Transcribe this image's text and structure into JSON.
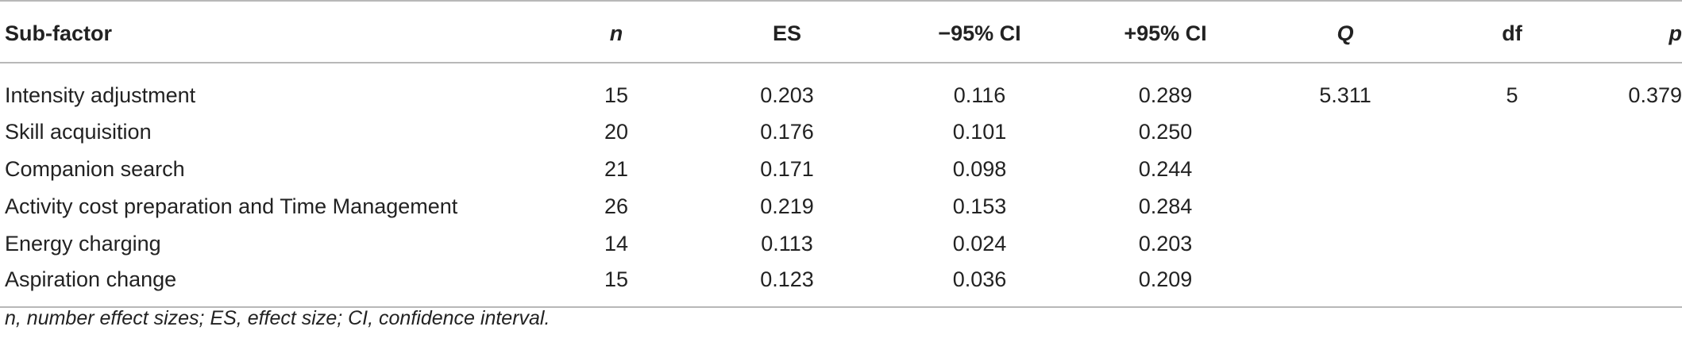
{
  "table": {
    "headers": {
      "sub_factor": "Sub-factor",
      "n": "n",
      "es": "ES",
      "ci_low": "−95% CI",
      "ci_high": "+95% CI",
      "q": "Q",
      "df": "df",
      "p": "p"
    },
    "rows": [
      {
        "sub_factor": "Intensity adjustment",
        "n": "15",
        "es": "0.203",
        "ci_low": "0.116",
        "ci_high": "0.289",
        "q": "5.311",
        "df": "5",
        "p": "0.379"
      },
      {
        "sub_factor": "Skill acquisition",
        "n": "20",
        "es": "0.176",
        "ci_low": "0.101",
        "ci_high": "0.250",
        "q": "",
        "df": "",
        "p": ""
      },
      {
        "sub_factor": "Companion search",
        "n": "21",
        "es": "0.171",
        "ci_low": "0.098",
        "ci_high": "0.244",
        "q": "",
        "df": "",
        "p": ""
      },
      {
        "sub_factor": "Activity cost preparation and Time Management",
        "n": "26",
        "es": "0.219",
        "ci_low": "0.153",
        "ci_high": "0.284",
        "q": "",
        "df": "",
        "p": ""
      },
      {
        "sub_factor": "Energy charging",
        "n": "14",
        "es": "0.113",
        "ci_low": "0.024",
        "ci_high": "0.203",
        "q": "",
        "df": "",
        "p": ""
      },
      {
        "sub_factor": "Aspiration change",
        "n": "15",
        "es": "0.123",
        "ci_low": "0.036",
        "ci_high": "0.209",
        "q": "",
        "df": "",
        "p": ""
      }
    ]
  },
  "footnote": "n, number effect sizes; ES, effect size; CI, confidence interval."
}
